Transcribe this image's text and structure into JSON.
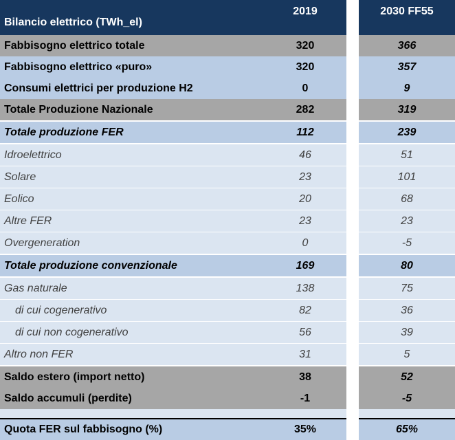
{
  "table": {
    "header": {
      "label": "Bilancio elettrico (TWh_el)",
      "col_2019": "2019",
      "col_2030": "2030 FF55"
    },
    "rows": [
      {
        "label": "Fabbisogno elettrico totale",
        "v2019": "320",
        "v2030": "366"
      },
      {
        "label": "Fabbisogno elettrico «puro»",
        "v2019": "320",
        "v2030": "357"
      },
      {
        "label": "Consumi elettrici per produzione H2",
        "v2019": "0",
        "v2030": "9"
      },
      {
        "label": "Totale Produzione Nazionale",
        "v2019": "282",
        "v2030": "319"
      },
      {
        "label": "Totale produzione FER",
        "v2019": "112",
        "v2030": "239"
      },
      {
        "label": "Idroelettrico",
        "v2019": "46",
        "v2030": "51"
      },
      {
        "label": "Solare",
        "v2019": "23",
        "v2030": "101"
      },
      {
        "label": "Eolico",
        "v2019": "20",
        "v2030": "68"
      },
      {
        "label": "Altre FER",
        "v2019": "23",
        "v2030": "23"
      },
      {
        "label": "Overgeneration",
        "v2019": "0",
        "v2030": "-5"
      },
      {
        "label": "Totale produzione convenzionale",
        "v2019": "169",
        "v2030": "80"
      },
      {
        "label": "Gas naturale",
        "v2019": "138",
        "v2030": "75"
      },
      {
        "label": "di cui cogenerativo",
        "v2019": "82",
        "v2030": "36"
      },
      {
        "label": "di cui non cogenerativo",
        "v2019": "56",
        "v2030": "39"
      },
      {
        "label": "Altro non FER",
        "v2019": "31",
        "v2030": "5"
      },
      {
        "label": "Saldo estero (import netto)",
        "v2019": "38",
        "v2030": "52"
      },
      {
        "label": "Saldo accumuli (perdite)",
        "v2019": "-1",
        "v2030": "-5"
      },
      {
        "label": "Quota FER sul fabbisogno (%)",
        "v2019": "35%",
        "v2030": "65%"
      }
    ]
  }
}
